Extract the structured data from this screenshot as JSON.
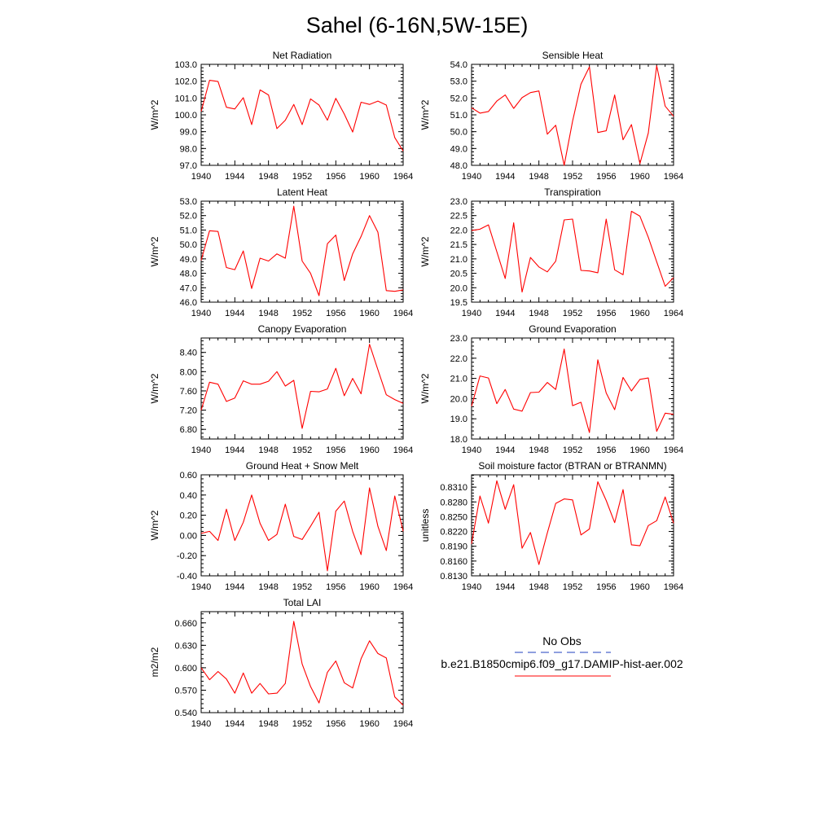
{
  "page_title": "Sahel (6-16N,5W-15E)",
  "colors": {
    "model_line": "#ff0000",
    "obs_line": "#1f3fbf",
    "axis": "#000000"
  },
  "legend": {
    "obs_label": "No Obs",
    "model_label": "b.e21.B1850cmip6.f09_g17.DAMIP-hist-aer.002"
  },
  "x_ticks": [
    "1940",
    "1944",
    "1948",
    "1952",
    "1956",
    "1960",
    "1964"
  ],
  "chart_data": [
    {
      "type": "line",
      "title": "Net Radiation",
      "ylabel": "W/m^2",
      "xlim": [
        1940,
        1964
      ],
      "ylim": [
        97,
        103
      ],
      "yticks": [
        "97.0",
        "98.0",
        "99.0",
        "100.0",
        "101.0",
        "102.0",
        "103.0"
      ],
      "series": [
        {
          "values": [
            100.2,
            102.05,
            101.98,
            100.45,
            100.35,
            101.02,
            99.42,
            101.48,
            101.18,
            99.18,
            99.68,
            100.62,
            99.42,
            100.95,
            100.58,
            99.68,
            100.98,
            100.05,
            98.98,
            100.75,
            100.62,
            100.82,
            100.58,
            98.65,
            97.85
          ]
        }
      ]
    },
    {
      "type": "line",
      "title": "Sensible Heat",
      "ylabel": "W/m^2",
      "xlim": [
        1940,
        1964
      ],
      "ylim": [
        48,
        54
      ],
      "yticks": [
        "48.0",
        "49.0",
        "50.0",
        "51.0",
        "52.0",
        "53.0",
        "54.0"
      ],
      "series": [
        {
          "values": [
            51.42,
            51.1,
            51.2,
            51.82,
            52.18,
            51.38,
            52.02,
            52.32,
            52.42,
            49.85,
            50.38,
            48.0,
            50.62,
            52.82,
            53.85,
            49.95,
            50.05,
            52.18,
            49.52,
            50.42,
            48.1,
            49.92,
            53.92,
            51.52,
            50.92
          ]
        }
      ]
    },
    {
      "type": "line",
      "title": "Latent Heat",
      "ylabel": "W/m^2",
      "xlim": [
        1940,
        1964
      ],
      "ylim": [
        46,
        53
      ],
      "yticks": [
        "46.0",
        "47.0",
        "48.0",
        "49.0",
        "50.0",
        "51.0",
        "52.0",
        "53.0"
      ],
      "series": [
        {
          "values": [
            48.9,
            50.95,
            50.9,
            48.4,
            48.25,
            49.55,
            46.95,
            49.05,
            48.85,
            49.35,
            49.05,
            52.65,
            48.85,
            48.0,
            46.45,
            50.05,
            50.65,
            47.5,
            49.35,
            50.55,
            52.0,
            50.85,
            46.8,
            46.75,
            46.85
          ]
        }
      ]
    },
    {
      "type": "line",
      "title": "Transpiration",
      "ylabel": "W/m^2",
      "xlim": [
        1940,
        1964
      ],
      "ylim": [
        19.5,
        23
      ],
      "yticks": [
        "19.5",
        "20.0",
        "20.5",
        "21.0",
        "21.5",
        "22.0",
        "22.5",
        "23.0"
      ],
      "series": [
        {
          "values": [
            21.98,
            22.03,
            22.18,
            21.25,
            20.32,
            22.25,
            19.85,
            21.05,
            20.72,
            20.55,
            20.92,
            22.35,
            22.38,
            20.6,
            20.58,
            20.52,
            22.38,
            20.62,
            20.45,
            22.65,
            22.48,
            21.75,
            20.9,
            20.05,
            20.35
          ]
        }
      ]
    },
    {
      "type": "line",
      "title": "Canopy Evaporation",
      "ylabel": "W/m^2",
      "xlim": [
        1940,
        1964
      ],
      "ylim": [
        6.6,
        8.7
      ],
      "yticks": [
        "6.80",
        "7.20",
        "7.60",
        "8.00",
        "8.40"
      ],
      "series": [
        {
          "values": [
            7.2,
            7.78,
            7.74,
            7.38,
            7.45,
            7.81,
            7.74,
            7.74,
            7.8,
            8.0,
            7.7,
            7.82,
            6.82,
            7.59,
            7.58,
            7.64,
            8.07,
            7.5,
            7.86,
            7.54,
            8.57,
            8.04,
            7.52,
            7.42,
            7.34
          ]
        }
      ]
    },
    {
      "type": "line",
      "title": "Ground Evaporation",
      "ylabel": "W/m^2",
      "xlim": [
        1940,
        1964
      ],
      "ylim": [
        18,
        23
      ],
      "yticks": [
        "18.0",
        "19.0",
        "20.0",
        "21.0",
        "22.0",
        "23.0"
      ],
      "series": [
        {
          "values": [
            19.62,
            21.12,
            21.02,
            19.75,
            20.45,
            19.48,
            19.38,
            20.3,
            20.32,
            20.8,
            20.45,
            22.45,
            19.65,
            19.82,
            18.32,
            21.92,
            20.28,
            19.45,
            21.05,
            20.38,
            20.95,
            21.02,
            18.38,
            19.28,
            19.22
          ]
        }
      ]
    },
    {
      "type": "line",
      "title": "Ground Heat + Snow Melt",
      "ylabel": "W/m^2",
      "xlim": [
        1940,
        1964
      ],
      "ylim": [
        -0.4,
        0.6
      ],
      "yticks": [
        "-0.40",
        "-0.20",
        "0.00",
        "0.20",
        "0.40",
        "0.60"
      ],
      "series": [
        {
          "values": [
            0.02,
            0.04,
            -0.05,
            0.26,
            -0.05,
            0.13,
            0.4,
            0.12,
            -0.05,
            0.01,
            0.31,
            -0.01,
            -0.04,
            0.09,
            0.23,
            -0.35,
            0.24,
            0.34,
            0.04,
            -0.19,
            0.47,
            0.09,
            -0.15,
            0.39,
            0.04
          ]
        }
      ]
    },
    {
      "type": "line",
      "title": "Soil moisture factor (BTRAN or BTRANMN)",
      "ylabel": "unitless",
      "xlim": [
        1940,
        1964
      ],
      "ylim": [
        0.813,
        0.8335
      ],
      "yticks": [
        "0.8130",
        "0.8160",
        "0.8190",
        "0.8220",
        "0.8250",
        "0.8280",
        "0.8310"
      ],
      "series": [
        {
          "values": [
            0.8195,
            0.8292,
            0.8237,
            0.8323,
            0.8265,
            0.8315,
            0.8186,
            0.8218,
            0.8153,
            0.8217,
            0.8277,
            0.8286,
            0.8284,
            0.8213,
            0.8225,
            0.8321,
            0.8283,
            0.8238,
            0.8305,
            0.8193,
            0.8191,
            0.8232,
            0.8242,
            0.829,
            0.8237
          ]
        }
      ]
    },
    {
      "type": "line",
      "title": "Total LAI",
      "ylabel": "m2/m2",
      "xlim": [
        1940,
        1964
      ],
      "ylim": [
        0.54,
        0.675
      ],
      "yticks": [
        "0.540",
        "0.570",
        "0.600",
        "0.630",
        "0.660"
      ],
      "series": [
        {
          "values": [
            0.6,
            0.584,
            0.595,
            0.585,
            0.566,
            0.593,
            0.566,
            0.579,
            0.565,
            0.566,
            0.579,
            0.662,
            0.605,
            0.575,
            0.553,
            0.594,
            0.609,
            0.58,
            0.573,
            0.612,
            0.636,
            0.619,
            0.613,
            0.561,
            0.55
          ]
        }
      ]
    }
  ]
}
